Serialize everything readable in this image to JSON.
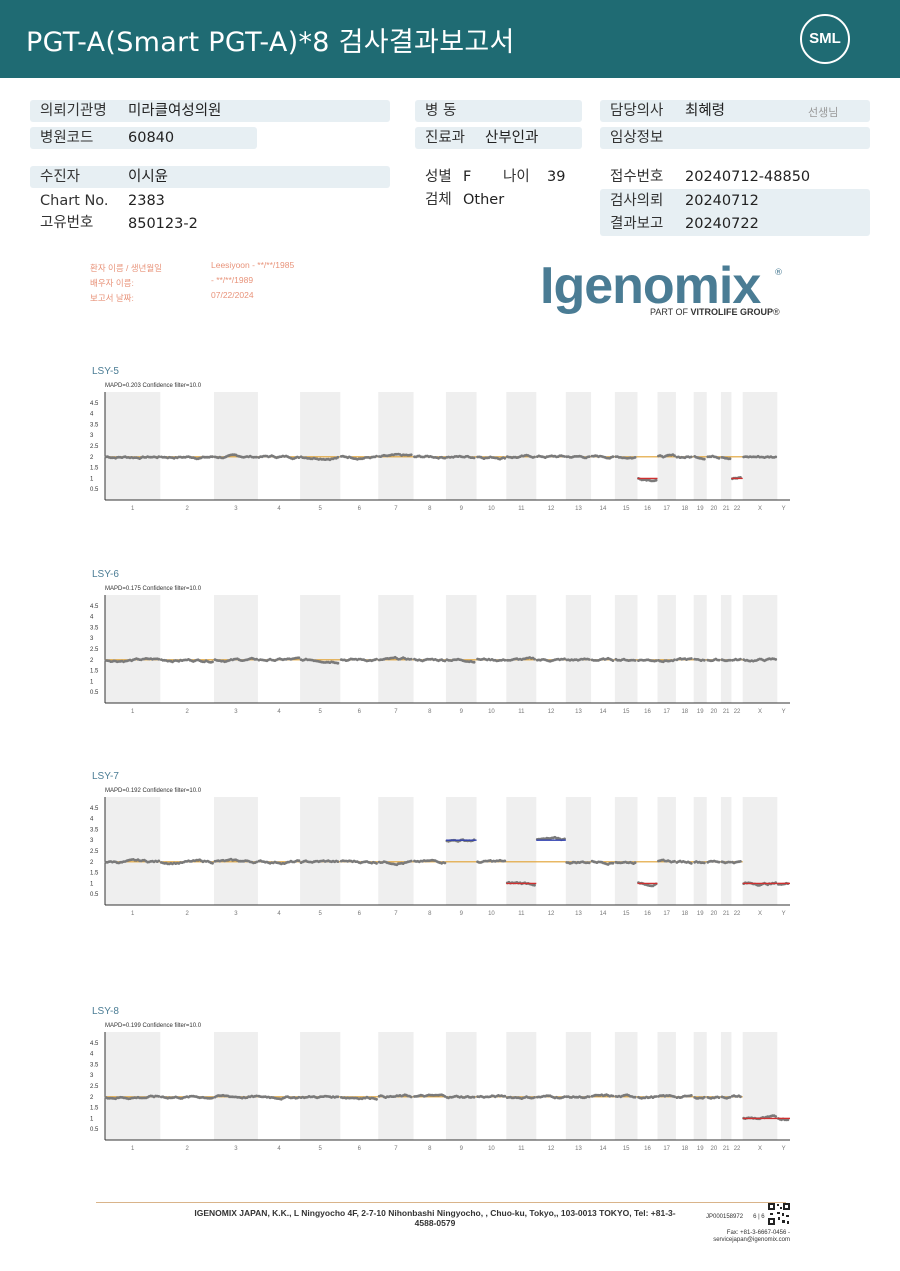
{
  "header": {
    "title": "PGT-A(Smart  PGT-A)*8 검사결과보고서",
    "logo": "SML"
  },
  "info": {
    "institution": {
      "label": "의뢰기관명",
      "value": "미라클여성의원"
    },
    "hospital_code": {
      "label": "병원코드",
      "value": "60840"
    },
    "ward": {
      "label": "병  동",
      "value": ""
    },
    "department": {
      "label": "진료과",
      "value": "산부인과"
    },
    "doctor": {
      "label": "담당의사",
      "value": "최혜령",
      "suffix": "선생님"
    },
    "clinical_info": {
      "label": "임상정보",
      "value": ""
    },
    "patient": {
      "label": "수진자",
      "value": "이시윤"
    },
    "chart_no": {
      "label": "Chart No.",
      "value": "2383"
    },
    "unique_no": {
      "label": "고유번호",
      "value": "850123-2"
    },
    "sex": {
      "label": "성별",
      "value": "F"
    },
    "age": {
      "label": "나이",
      "value": "39"
    },
    "specimen": {
      "label": "검체",
      "value": "Other"
    },
    "receipt_no": {
      "label": "접수번호",
      "value": "20240712-48850"
    },
    "request_date": {
      "label": "검사의뢰",
      "value": "20240712"
    },
    "report_date": {
      "label": "결과보고",
      "value": "20240722"
    }
  },
  "report_meta": {
    "patient_label": "환자 이름 / 생년월일",
    "patient_value": "Leesiyoon - **/**/1985",
    "partner_label": "배우자 이름:",
    "partner_value": "- **/**/1989",
    "date_label": "보고서 날짜:",
    "date_value": "07/22/2024"
  },
  "brand": {
    "name": "Igenomix",
    "reg": "®",
    "tagline_pre": "PART OF ",
    "tagline_bold": "VITROLIFE GROUP",
    "tagline_post": "®"
  },
  "chart_data": [
    {
      "type": "scatter",
      "title": "LSY-5",
      "subtitle": "MAPD=0.203 Confidence filter=10.0",
      "xlabel": "",
      "ylabel": "",
      "ylim": [
        0,
        5
      ],
      "y_ticks": [
        "0.5",
        "1",
        "1.5",
        "2",
        "2.5",
        "3",
        "3.5",
        "4",
        "4.5"
      ],
      "chromosomes": [
        "1",
        "2",
        "3",
        "4",
        "5",
        "6",
        "7",
        "8",
        "9",
        "10",
        "11",
        "12",
        "13",
        "14",
        "15",
        "16",
        "17",
        "18",
        "19",
        "20",
        "21",
        "22",
        "X",
        "Y"
      ],
      "copy_number": [
        2,
        2,
        2,
        2,
        2,
        2,
        2,
        2,
        2,
        2,
        2,
        2,
        2,
        2,
        2,
        1,
        2,
        2,
        2,
        2,
        2,
        1,
        2,
        2
      ],
      "reference_line": 2
    },
    {
      "type": "scatter",
      "title": "LSY-6",
      "subtitle": "MAPD=0.175 Confidence filter=10.0",
      "xlabel": "",
      "ylabel": "",
      "ylim": [
        0,
        5
      ],
      "y_ticks": [
        "0.5",
        "1",
        "1.5",
        "2",
        "2.5",
        "3",
        "3.5",
        "4",
        "4.5"
      ],
      "chromosomes": [
        "1",
        "2",
        "3",
        "4",
        "5",
        "6",
        "7",
        "8",
        "9",
        "10",
        "11",
        "12",
        "13",
        "14",
        "15",
        "16",
        "17",
        "18",
        "19",
        "20",
        "21",
        "22",
        "X",
        "Y"
      ],
      "copy_number": [
        2,
        2,
        2,
        2,
        2,
        2,
        2,
        2,
        2,
        2,
        2,
        2,
        2,
        2,
        2,
        2,
        2,
        2,
        2,
        2,
        2,
        2,
        2,
        2
      ],
      "reference_line": 2
    },
    {
      "type": "scatter",
      "title": "LSY-7",
      "subtitle": "MAPD=0.192 Confidence filter=10.0",
      "xlabel": "",
      "ylabel": "",
      "ylim": [
        0,
        5
      ],
      "y_ticks": [
        "0.5",
        "1",
        "1.5",
        "2",
        "2.5",
        "3",
        "3.5",
        "4",
        "4.5"
      ],
      "chromosomes": [
        "1",
        "2",
        "3",
        "4",
        "5",
        "6",
        "7",
        "8",
        "9",
        "10",
        "11",
        "12",
        "13",
        "14",
        "15",
        "16",
        "17",
        "18",
        "19",
        "20",
        "21",
        "22",
        "X",
        "Y"
      ],
      "copy_number": [
        2,
        2,
        2,
        2,
        2,
        2,
        2,
        2,
        3,
        2,
        1,
        3,
        2,
        2,
        2,
        1,
        2,
        2,
        2,
        2,
        2,
        2,
        1,
        1
      ],
      "reference_line": 2
    },
    {
      "type": "scatter",
      "title": "LSY-8",
      "subtitle": "MAPD=0.199 Confidence filter=10.0",
      "xlabel": "",
      "ylabel": "",
      "ylim": [
        0,
        5
      ],
      "y_ticks": [
        "0.5",
        "1",
        "1.5",
        "2",
        "2.5",
        "3",
        "3.5",
        "4",
        "4.5"
      ],
      "chromosomes": [
        "1",
        "2",
        "3",
        "4",
        "5",
        "6",
        "7",
        "8",
        "9",
        "10",
        "11",
        "12",
        "13",
        "14",
        "15",
        "16",
        "17",
        "18",
        "19",
        "20",
        "21",
        "22",
        "X",
        "Y"
      ],
      "copy_number": [
        2,
        2,
        2,
        2,
        2,
        2,
        2,
        2,
        2,
        2,
        2,
        2,
        2,
        2,
        2,
        2,
        2,
        2,
        2,
        2,
        2,
        2,
        1,
        1
      ],
      "reference_line": 2
    }
  ],
  "footer": {
    "address": "IGENOMIX JAPAN, K.K., L Ningyocho 4F, 2-7-10 Nihonbashi Ningyocho, , Chuo-ku, Tokyo,, 103-0013 TOKYO, Tel: +81-3-4588-0579",
    "doc_code": "JP000158972",
    "page": "6 | 6",
    "fax": "Fax: +81-3-6667-0456 -",
    "email": "servicejapan@igenomix.com"
  },
  "colors": {
    "header_bg": "#1f6b73",
    "label_bg": "#e7eff3",
    "brand": "#4a7c94",
    "normal_line": "#e0a030",
    "loss_line": "#d03030",
    "gain_line": "#3040b0",
    "points": "#7a7a7a"
  }
}
